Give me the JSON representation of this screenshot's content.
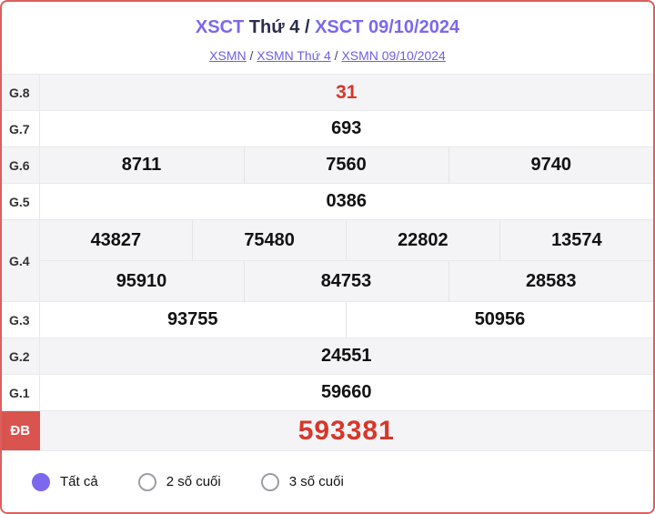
{
  "header": {
    "title": {
      "part1": "XSCT",
      "part2": " Thứ 4 / ",
      "part3": "XSCT 09/10/2024"
    },
    "breadcrumb": {
      "links": [
        "XSMN",
        "XSMN Thứ 4",
        "XSMN 09/10/2024"
      ],
      "separator": " / "
    }
  },
  "table": {
    "rows": [
      {
        "label": "G.8",
        "values": [
          "31"
        ]
      },
      {
        "label": "G.7",
        "values": [
          "693"
        ]
      },
      {
        "label": "G.6",
        "values": [
          "8711",
          "7560",
          "9740"
        ]
      },
      {
        "label": "G.5",
        "values": [
          "0386"
        ]
      },
      {
        "label": "G.4",
        "values": [
          "43827",
          "75480",
          "22802",
          "13574",
          "95910",
          "84753",
          "28583"
        ]
      },
      {
        "label": "G.3",
        "values": [
          "93755",
          "50956"
        ]
      },
      {
        "label": "G.2",
        "values": [
          "24551"
        ]
      },
      {
        "label": "G.1",
        "values": [
          "59660"
        ]
      },
      {
        "label": "ĐB",
        "values": [
          "593381"
        ]
      }
    ]
  },
  "filters": {
    "options": [
      {
        "label": "Tất cả",
        "selected": true
      },
      {
        "label": "2 số cuối",
        "selected": false
      },
      {
        "label": "3 số cuối",
        "selected": false
      }
    ]
  },
  "icons": {
    "radio_selected": "filled-circle",
    "radio_unselected": "outline-circle"
  },
  "colors": {
    "card_border": "#dc5f5f",
    "accent_purple": "#7b68ee",
    "title_dark": "#2d2d4e",
    "red_text": "#d8362a",
    "db_badge": "#d9534f",
    "row_shade": "#f4f4f6",
    "divider": "#e9e9eb"
  }
}
